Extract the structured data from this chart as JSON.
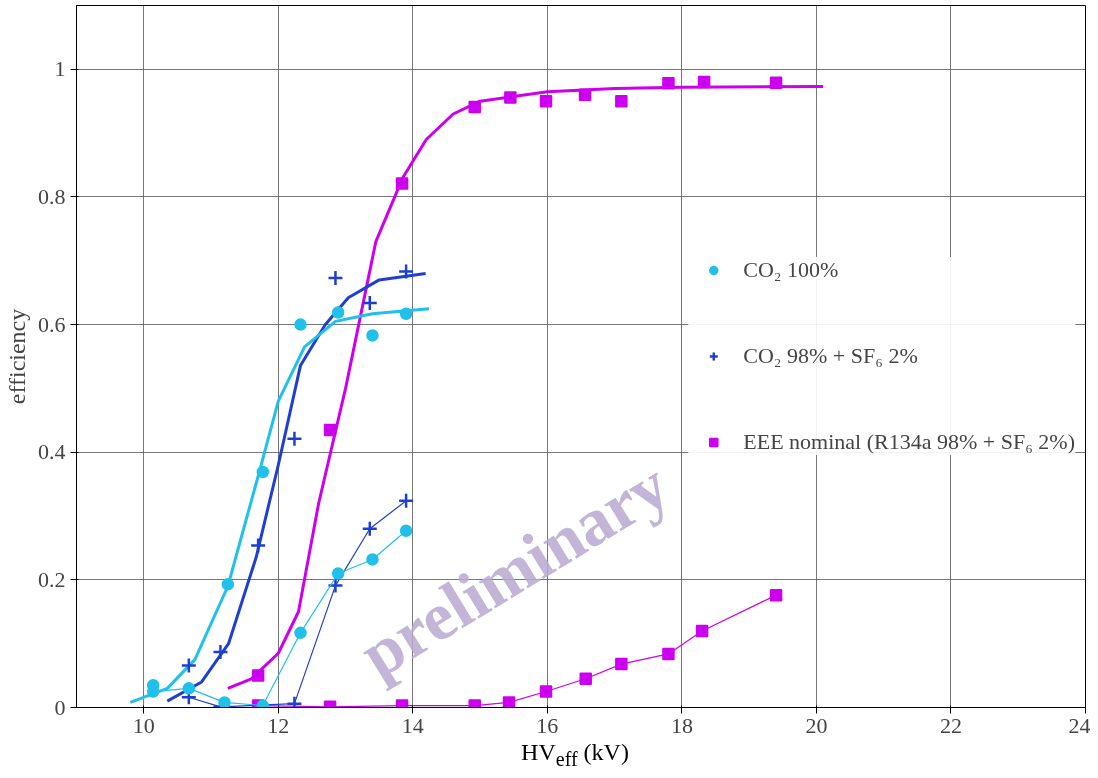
{
  "chart_data": {
    "type": "scatter",
    "xlabel": "HV$_{eff}$ (kV)",
    "ylabel": "efficiency",
    "xlim": [
      9,
      24
    ],
    "ylim": [
      0,
      1.1
    ],
    "xticks": [
      10,
      12,
      14,
      16,
      18,
      20,
      22,
      24
    ],
    "yticks": [
      0,
      0.2,
      0.4,
      0.6,
      0.8,
      1
    ],
    "grid": true,
    "legend": "right",
    "annotations": [
      "preliminary"
    ],
    "series": [
      {
        "name": "CO₂ 100%",
        "marker": "circle",
        "color": "#20c0ea",
        "x": [
          10.14,
          11.25,
          11.77,
          12.33,
          12.89,
          13.4,
          13.9
        ],
        "values": [
          0.035,
          0.193,
          0.369,
          0.6,
          0.619,
          0.583,
          0.617
        ]
      },
      {
        "name": "CO₂ 98% + SF₆ 2%",
        "marker": "cross",
        "color": "#1f3fd0",
        "x": [
          10.67,
          11.14,
          11.7,
          12.24,
          12.85,
          13.36,
          13.9
        ],
        "values": [
          0.066,
          0.087,
          0.254,
          0.421,
          0.673,
          0.634,
          0.683
        ]
      },
      {
        "name": "EEE nominal (R134a 98% + SF₆ 2%)",
        "marker": "square",
        "color": "#cc00ee",
        "x": [
          11.7,
          12.77,
          13.84,
          14.92,
          15.45,
          15.98,
          16.56,
          17.1,
          17.8,
          18.33,
          19.4
        ],
        "values": [
          0.05,
          0.435,
          0.821,
          0.941,
          0.956,
          0.95,
          0.96,
          0.95,
          0.978,
          0.98,
          0.979
        ]
      },
      {
        "type": "line",
        "marker": "circle",
        "color": "#20c0ea",
        "x": [
          10.14,
          10.67,
          11.2,
          11.77,
          12.33,
          12.89,
          13.4,
          13.9
        ],
        "values": [
          0.025,
          0.03,
          0.008,
          0.003,
          0.117,
          0.21,
          0.232,
          0.277
        ]
      },
      {
        "type": "line",
        "marker": "cross",
        "color": "#1f3fd0",
        "x": [
          10.67,
          11.14,
          12.24,
          12.85,
          13.36,
          13.9
        ],
        "values": [
          0.016,
          0.001,
          0.006,
          0.191,
          0.28,
          0.324
        ]
      },
      {
        "type": "line",
        "marker": "square",
        "color": "#cc00ee",
        "x": [
          11.7,
          12.77,
          13.84,
          14.92,
          15.43,
          15.98,
          16.57,
          17.1,
          17.8,
          18.3,
          19.4
        ],
        "values": [
          0.003,
          0.001,
          0.003,
          0.003,
          0.008,
          0.025,
          0.045,
          0.068,
          0.084,
          0.12,
          0.176
        ]
      },
      {
        "type": "line",
        "marker": "none",
        "color": "#20c0ea",
        "x": [
          9.8,
          10.35,
          10.76,
          11.25,
          11.72,
          12.0,
          12.39,
          12.85,
          13.4,
          14.24
        ],
        "values": [
          0.008,
          0.03,
          0.075,
          0.19,
          0.37,
          0.48,
          0.565,
          0.605,
          0.617,
          0.625
        ]
      },
      {
        "type": "line",
        "marker": "none",
        "color": "#1f3fd0",
        "x": [
          10.35,
          10.86,
          11.26,
          11.67,
          12.0,
          12.33,
          12.7,
          13.04,
          13.5,
          14.19
        ],
        "values": [
          0.01,
          0.04,
          0.1,
          0.235,
          0.38,
          0.536,
          0.6,
          0.642,
          0.67,
          0.68
        ]
      },
      {
        "type": "line",
        "marker": "none",
        "color": "#cc00ee",
        "x": [
          11.25,
          11.6,
          12.0,
          12.3,
          12.6,
          13.0,
          13.45,
          13.85,
          14.2,
          14.6,
          15.0,
          16.0,
          17.0,
          18.0,
          20.1
        ],
        "values": [
          0.03,
          0.045,
          0.085,
          0.15,
          0.32,
          0.5,
          0.73,
          0.83,
          0.89,
          0.93,
          0.95,
          0.965,
          0.97,
          0.972,
          0.973
        ]
      }
    ]
  }
}
